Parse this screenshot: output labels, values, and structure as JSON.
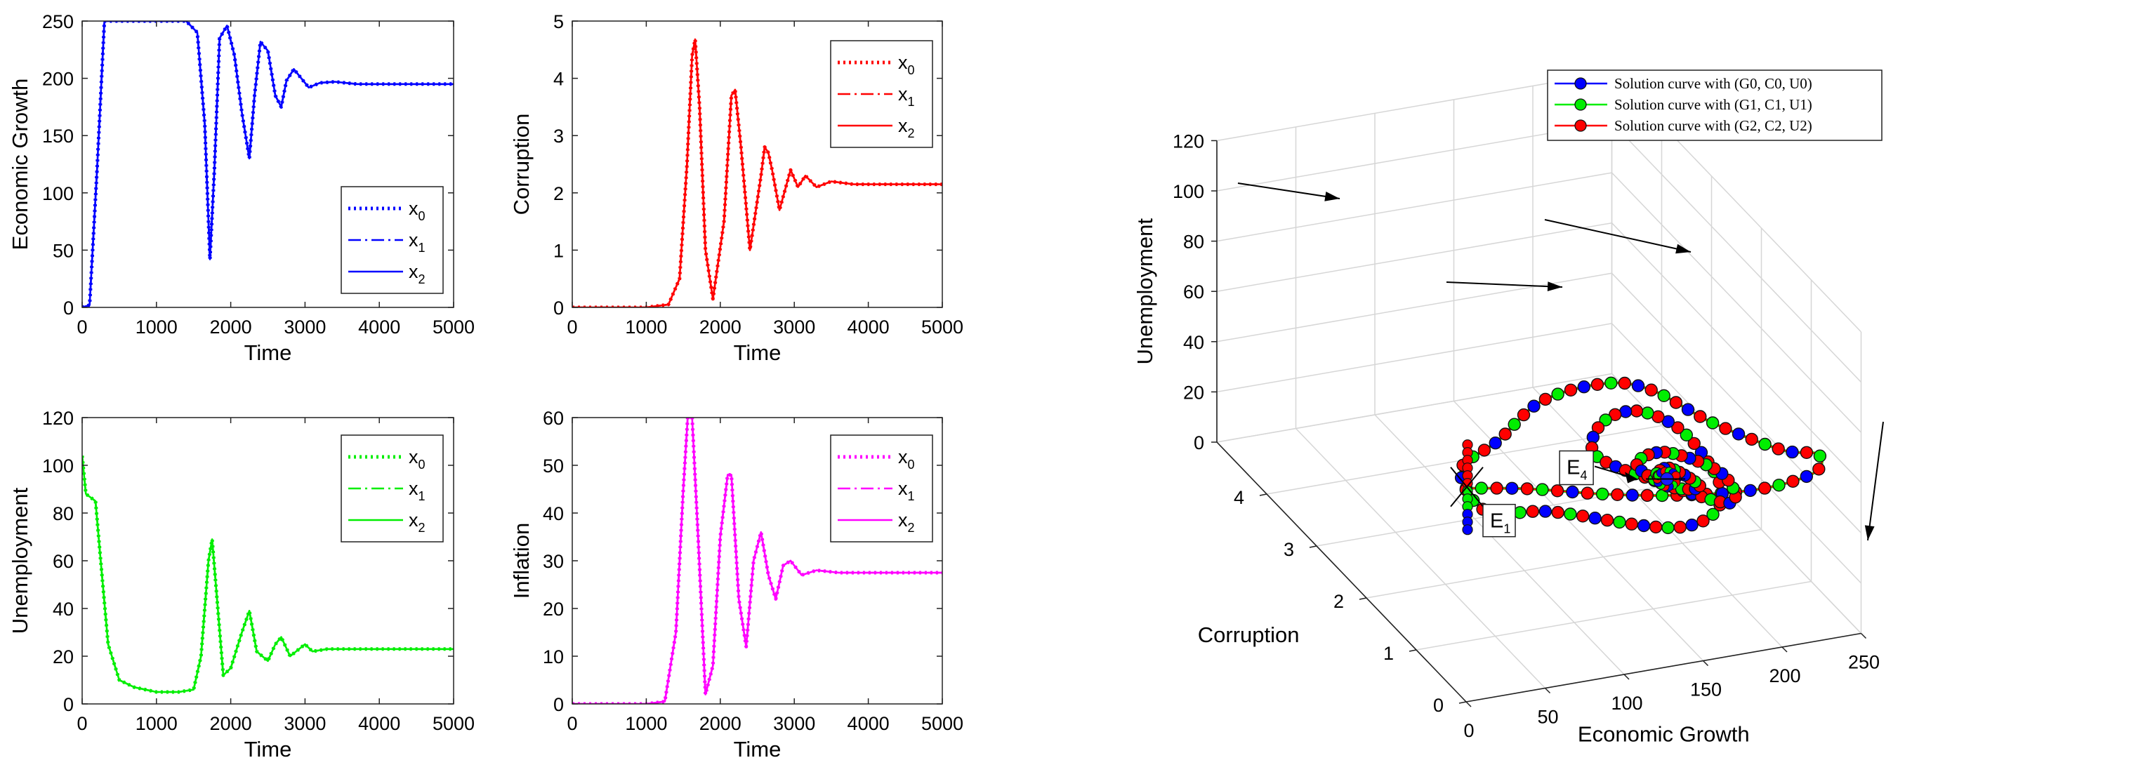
{
  "chart_data": [
    {
      "type": "line",
      "xlabel": "Time",
      "ylabel": "Economic Growth",
      "xlim": [
        0,
        5000
      ],
      "ylim": [
        0,
        250
      ],
      "xticks": [
        0,
        1000,
        2000,
        3000,
        4000,
        5000
      ],
      "yticks": [
        0,
        50,
        100,
        150,
        200,
        250
      ],
      "color": "#0000ff",
      "legend_position": "center-right",
      "series": [
        {
          "name": "x",
          "sub": "0",
          "style": "dotted",
          "x": [
            0,
            100,
            200,
            300,
            1400,
            1550,
            1650,
            1720,
            1780,
            1850,
            1950,
            2050,
            2150,
            2250,
            2320,
            2400,
            2500,
            2600,
            2680,
            2750,
            2850,
            2950,
            3050,
            3200,
            3400,
            3700,
            5000
          ],
          "y": [
            0,
            2,
            120,
            250,
            250,
            240,
            160,
            42,
            120,
            235,
            246,
            220,
            170,
            130,
            185,
            232,
            224,
            185,
            175,
            198,
            208,
            200,
            192,
            196,
            197,
            195,
            195
          ]
        },
        {
          "name": "x",
          "sub": "1",
          "style": "dashdot",
          "x": [
            0,
            100,
            200,
            300,
            1400,
            1550,
            1650,
            1720,
            1780,
            1850,
            1950,
            2050,
            2150,
            2250,
            2320,
            2400,
            2500,
            2600,
            2680,
            2750,
            2850,
            2950,
            3050,
            3200,
            3400,
            3700,
            5000
          ],
          "y": [
            0,
            2,
            120,
            250,
            250,
            240,
            160,
            42,
            120,
            235,
            246,
            220,
            170,
            130,
            185,
            232,
            224,
            185,
            175,
            198,
            208,
            200,
            192,
            196,
            197,
            195,
            195
          ]
        },
        {
          "name": "x",
          "sub": "2",
          "style": "solid",
          "x": [
            0,
            100,
            200,
            300,
            1400,
            1550,
            1650,
            1720,
            1780,
            1850,
            1950,
            2050,
            2150,
            2250,
            2320,
            2400,
            2500,
            2600,
            2680,
            2750,
            2850,
            2950,
            3050,
            3200,
            3400,
            3700,
            5000
          ],
          "y": [
            0,
            2,
            120,
            250,
            250,
            240,
            160,
            42,
            120,
            235,
            246,
            220,
            170,
            130,
            185,
            232,
            224,
            185,
            175,
            198,
            208,
            200,
            192,
            196,
            197,
            195,
            195
          ]
        }
      ]
    },
    {
      "type": "line",
      "xlabel": "Time",
      "ylabel": "Corruption",
      "xlim": [
        0,
        5000
      ],
      "ylim": [
        0,
        5
      ],
      "xticks": [
        0,
        1000,
        2000,
        3000,
        4000,
        5000
      ],
      "yticks": [
        0,
        1,
        2,
        3,
        4,
        5
      ],
      "color": "#ff0000",
      "legend_position": "top-right",
      "series": [
        {
          "name": "x",
          "sub": "0",
          "style": "dotted",
          "x": [
            0,
            1000,
            1300,
            1450,
            1550,
            1620,
            1660,
            1720,
            1800,
            1900,
            2050,
            2150,
            2200,
            2280,
            2400,
            2550,
            2600,
            2650,
            2700,
            2800,
            2950,
            3050,
            3150,
            3300,
            3500,
            3800,
            5000
          ],
          "y": [
            0,
            0,
            0.05,
            0.5,
            2.5,
            4.4,
            4.68,
            3.5,
            1.0,
            0.15,
            1.5,
            3.7,
            3.8,
            2.8,
            1.0,
            2.3,
            2.8,
            2.7,
            2.4,
            1.7,
            2.4,
            2.1,
            2.3,
            2.1,
            2.2,
            2.15,
            2.15
          ]
        },
        {
          "name": "x",
          "sub": "1",
          "style": "dashdot",
          "x": [
            0,
            1000,
            1300,
            1450,
            1550,
            1620,
            1660,
            1720,
            1800,
            1900,
            2050,
            2150,
            2200,
            2280,
            2400,
            2550,
            2600,
            2650,
            2700,
            2800,
            2950,
            3050,
            3150,
            3300,
            3500,
            3800,
            5000
          ],
          "y": [
            0,
            0,
            0.05,
            0.5,
            2.5,
            4.4,
            4.68,
            3.5,
            1.0,
            0.15,
            1.5,
            3.7,
            3.8,
            2.8,
            1.0,
            2.3,
            2.8,
            2.7,
            2.4,
            1.7,
            2.4,
            2.1,
            2.3,
            2.1,
            2.2,
            2.15,
            2.15
          ]
        },
        {
          "name": "x",
          "sub": "2",
          "style": "solid",
          "x": [
            0,
            1000,
            1300,
            1450,
            1550,
            1620,
            1660,
            1720,
            1800,
            1900,
            2050,
            2150,
            2200,
            2280,
            2400,
            2550,
            2600,
            2650,
            2700,
            2800,
            2950,
            3050,
            3150,
            3300,
            3500,
            3800,
            5000
          ],
          "y": [
            0,
            0,
            0.05,
            0.5,
            2.5,
            4.4,
            4.68,
            3.5,
            1.0,
            0.15,
            1.5,
            3.7,
            3.8,
            2.8,
            1.0,
            2.3,
            2.8,
            2.7,
            2.4,
            1.7,
            2.4,
            2.1,
            2.3,
            2.1,
            2.2,
            2.15,
            2.15
          ]
        }
      ]
    },
    {
      "type": "line",
      "xlabel": "Time",
      "ylabel": "Unemployment",
      "xlim": [
        0,
        5000
      ],
      "ylim": [
        0,
        120
      ],
      "xticks": [
        0,
        1000,
        2000,
        3000,
        4000,
        5000
      ],
      "yticks": [
        0,
        20,
        40,
        60,
        80,
        100,
        120
      ],
      "color": "#00ee00",
      "legend_position": "top-right",
      "series": [
        {
          "name": "x",
          "sub": "0",
          "style": "dotted",
          "x": [
            0,
            50,
            180,
            250,
            350,
            500,
            700,
            1000,
            1300,
            1500,
            1600,
            1700,
            1750,
            1800,
            1900,
            2000,
            2150,
            2250,
            2350,
            2500,
            2600,
            2680,
            2800,
            3000,
            3100,
            3300,
            3600,
            5000
          ],
          "y": [
            104,
            88,
            85,
            60,
            25,
            10,
            7,
            5,
            5,
            6,
            20,
            60,
            69,
            50,
            12,
            15,
            30,
            39,
            22,
            18,
            25,
            28,
            20,
            25,
            22,
            23,
            23,
            23
          ]
        },
        {
          "name": "x",
          "sub": "1",
          "style": "dashdot",
          "x": [
            0,
            50,
            180,
            250,
            350,
            500,
            700,
            1000,
            1300,
            1500,
            1600,
            1700,
            1750,
            1800,
            1900,
            2000,
            2150,
            2250,
            2350,
            2500,
            2600,
            2680,
            2800,
            3000,
            3100,
            3300,
            3600,
            5000
          ],
          "y": [
            104,
            88,
            85,
            60,
            25,
            10,
            7,
            5,
            5,
            6,
            20,
            60,
            69,
            50,
            12,
            15,
            30,
            39,
            22,
            18,
            25,
            28,
            20,
            25,
            22,
            23,
            23,
            23
          ]
        },
        {
          "name": "x",
          "sub": "2",
          "style": "solid",
          "x": [
            0,
            50,
            180,
            250,
            350,
            500,
            700,
            1000,
            1300,
            1500,
            1600,
            1700,
            1750,
            1800,
            1900,
            2000,
            2150,
            2250,
            2350,
            2500,
            2600,
            2680,
            2800,
            3000,
            3100,
            3300,
            3600,
            5000
          ],
          "y": [
            104,
            88,
            85,
            60,
            25,
            10,
            7,
            5,
            5,
            6,
            20,
            60,
            69,
            50,
            12,
            15,
            30,
            39,
            22,
            18,
            25,
            28,
            20,
            25,
            22,
            23,
            23,
            23
          ]
        }
      ]
    },
    {
      "type": "line",
      "xlabel": "Time",
      "ylabel": "Inflation",
      "xlim": [
        0,
        5000
      ],
      "ylim": [
        0,
        60
      ],
      "xticks": [
        0,
        1000,
        2000,
        3000,
        4000,
        5000
      ],
      "yticks": [
        0,
        10,
        20,
        30,
        40,
        50,
        60
      ],
      "color": "#ff00ff",
      "legend_position": "top-right",
      "series": [
        {
          "name": "x",
          "sub": "0",
          "style": "dotted",
          "x": [
            0,
            1000,
            1250,
            1400,
            1500,
            1560,
            1620,
            1700,
            1800,
            1900,
            2000,
            2100,
            2150,
            2250,
            2350,
            2450,
            2550,
            2650,
            2750,
            2850,
            2950,
            3100,
            3300,
            3600,
            5000
          ],
          "y": [
            0,
            0,
            0.5,
            15,
            45,
            60,
            60,
            35,
            2,
            8,
            35,
            48,
            48,
            22,
            12,
            30,
            36,
            27,
            22,
            29,
            30,
            27,
            28,
            27.5,
            27.5
          ]
        },
        {
          "name": "x",
          "sub": "1",
          "style": "dashdot",
          "x": [
            0,
            1000,
            1250,
            1400,
            1500,
            1560,
            1620,
            1700,
            1800,
            1900,
            2000,
            2100,
            2150,
            2250,
            2350,
            2450,
            2550,
            2650,
            2750,
            2850,
            2950,
            3100,
            3300,
            3600,
            5000
          ],
          "y": [
            0,
            0,
            0.5,
            15,
            45,
            60,
            60,
            35,
            2,
            8,
            35,
            48,
            48,
            22,
            12,
            30,
            36,
            27,
            22,
            29,
            30,
            27,
            28,
            27.5,
            27.5
          ]
        },
        {
          "name": "x",
          "sub": "2",
          "style": "solid",
          "x": [
            0,
            1000,
            1250,
            1400,
            1500,
            1560,
            1620,
            1700,
            1800,
            1900,
            2000,
            2100,
            2150,
            2250,
            2350,
            2450,
            2550,
            2650,
            2750,
            2850,
            2950,
            3100,
            3300,
            3600,
            5000
          ],
          "y": [
            0,
            0,
            0.5,
            15,
            45,
            60,
            60,
            35,
            2,
            8,
            35,
            48,
            48,
            22,
            12,
            30,
            36,
            27,
            22,
            29,
            30,
            27,
            28,
            27.5,
            27.5
          ]
        }
      ]
    },
    {
      "type": "line3d",
      "xlabel": "Economic Growth",
      "ylabel": "Corruption",
      "zlabel": "Unemployment",
      "xlim": [
        0,
        250
      ],
      "ylim": [
        0,
        5
      ],
      "zlim": [
        0,
        120
      ],
      "xticks": [
        0,
        50,
        100,
        150,
        200,
        250
      ],
      "yticks": [
        0,
        1,
        2,
        3,
        4
      ],
      "zticks": [
        0,
        20,
        40,
        60,
        80,
        100,
        120
      ],
      "grid": true,
      "legend_position": "top-right",
      "legend": [
        {
          "label": "Solution curve with",
          "tuple": "(G0, C0, U0)",
          "line_color": "#0000ff",
          "marker_color": "#0000ff"
        },
        {
          "label": "Solution curve with",
          "tuple": "(G1, C1, U1)",
          "line_color": "#00ee00",
          "marker_color": "#00ee00"
        },
        {
          "label": "Solution curve with",
          "tuple": "(G2, C2, U2)",
          "line_color": "#ff0000",
          "marker_color": "#ff0000"
        }
      ],
      "annotations": [
        {
          "label": "E",
          "sub": "1"
        },
        {
          "label": "E",
          "sub": "4"
        }
      ],
      "equilibrium_E1": {
        "x": 0,
        "y": 0,
        "z": 85
      },
      "equilibrium_E4": {
        "x": 195,
        "y": 2.15,
        "z": 23
      },
      "trajectory": [
        {
          "x": 0,
          "y": 0,
          "z": 85
        },
        {
          "x": 40,
          "y": 0.02,
          "z": 80
        },
        {
          "x": 90,
          "y": 0.04,
          "z": 72
        },
        {
          "x": 140,
          "y": 0.05,
          "z": 66
        },
        {
          "x": 190,
          "y": 0.1,
          "z": 62
        },
        {
          "x": 230,
          "y": 0.3,
          "z": 60
        },
        {
          "x": 248,
          "y": 0.8,
          "z": 55
        },
        {
          "x": 250,
          "y": 1.6,
          "z": 40
        },
        {
          "x": 250,
          "y": 3.0,
          "z": 22
        },
        {
          "x": 250,
          "y": 4.2,
          "z": 10
        },
        {
          "x": 235,
          "y": 4.65,
          "z": 5
        },
        {
          "x": 190,
          "y": 4.5,
          "z": 6
        },
        {
          "x": 140,
          "y": 3.8,
          "z": 10
        },
        {
          "x": 85,
          "y": 2.8,
          "z": 25
        },
        {
          "x": 45,
          "y": 1.0,
          "z": 50
        },
        {
          "x": 60,
          "y": 0.2,
          "z": 65
        },
        {
          "x": 140,
          "y": 0.2,
          "z": 50
        },
        {
          "x": 200,
          "y": 1.2,
          "z": 35
        },
        {
          "x": 235,
          "y": 3.0,
          "z": 18
        },
        {
          "x": 230,
          "y": 3.8,
          "z": 12
        },
        {
          "x": 200,
          "y": 3.6,
          "z": 15
        },
        {
          "x": 170,
          "y": 2.8,
          "z": 22
        },
        {
          "x": 175,
          "y": 1.8,
          "z": 32
        },
        {
          "x": 205,
          "y": 1.2,
          "z": 32
        },
        {
          "x": 225,
          "y": 2.0,
          "z": 25
        },
        {
          "x": 215,
          "y": 2.8,
          "z": 18
        },
        {
          "x": 190,
          "y": 2.6,
          "z": 20
        },
        {
          "x": 188,
          "y": 1.9,
          "z": 26
        },
        {
          "x": 205,
          "y": 1.8,
          "z": 26
        },
        {
          "x": 205,
          "y": 2.4,
          "z": 21
        },
        {
          "x": 193,
          "y": 2.3,
          "z": 22
        },
        {
          "x": 195,
          "y": 2.15,
          "z": 23
        }
      ]
    }
  ]
}
